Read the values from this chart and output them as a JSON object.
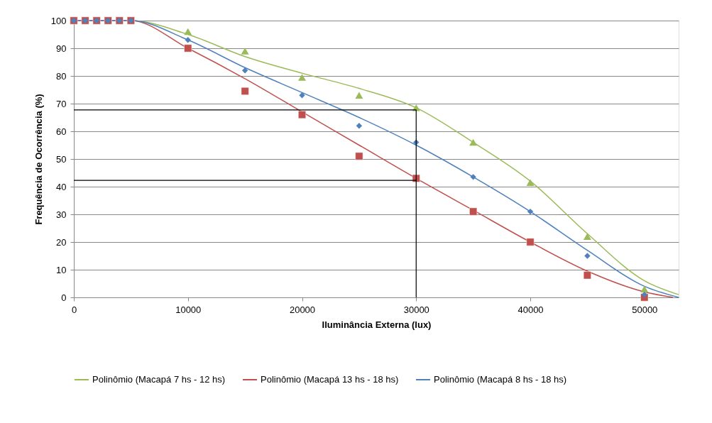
{
  "chart_data": {
    "type": "scatter",
    "xlabel": "Iluminância Externa (lux)",
    "ylabel": "Frequência de Ocorrência (%)",
    "xlim": [
      0,
      53000
    ],
    "xticks": [
      0,
      10000,
      20000,
      30000,
      40000,
      50000
    ],
    "ylim": [
      0,
      100
    ],
    "yticks": [
      0,
      10,
      20,
      30,
      40,
      50,
      60,
      70,
      80,
      90,
      100
    ],
    "grid": "y",
    "legend": "bottom",
    "series": [
      {
        "type": "line",
        "name": "Polinômio (Macapá 7 hs - 12 hs)",
        "color": "#9bbb59",
        "x": [
          0,
          5000,
          10000,
          15000,
          20000,
          25000,
          30000,
          35000,
          40000,
          45000,
          50000,
          53000
        ],
        "values": [
          100,
          100,
          95,
          87,
          81,
          75.5,
          68.5,
          56,
          42,
          23,
          6,
          1
        ]
      },
      {
        "type": "line",
        "name": "Polinômio (Macapá 13 hs - 18 hs)",
        "color": "#c0504d",
        "x": [
          0,
          5000,
          10000,
          15000,
          20000,
          25000,
          30000,
          35000,
          40000,
          45000,
          50000,
          52500
        ],
        "values": [
          100,
          100,
          90,
          79,
          67,
          55,
          43,
          31.5,
          20,
          9.5,
          2,
          0
        ]
      },
      {
        "type": "line",
        "name": "Polinômio (Macapá 8 hs - 18 hs)",
        "color": "#4f81bd",
        "x": [
          0,
          5000,
          10000,
          15000,
          20000,
          25000,
          30000,
          35000,
          40000,
          45000,
          50000,
          53000
        ],
        "values": [
          100,
          100,
          93,
          83,
          74,
          65,
          55,
          43.5,
          31,
          17,
          4,
          0
        ]
      },
      {
        "marker": "triangle",
        "color": "#9bbb59",
        "x": [
          10000,
          15000,
          20000,
          25000,
          30000,
          35000,
          40000,
          45000,
          50000
        ],
        "values": [
          96,
          89,
          79.5,
          73,
          68.5,
          56,
          41.5,
          22,
          3
        ]
      },
      {
        "marker": "square",
        "color": "#c0504d",
        "x": [
          0,
          1000,
          2000,
          3000,
          4000,
          5000,
          10000,
          15000,
          20000,
          25000,
          30000,
          35000,
          40000,
          45000,
          50000
        ],
        "values": [
          100,
          100,
          100,
          100,
          100,
          100,
          90,
          74.5,
          66,
          51,
          43,
          31,
          20,
          8,
          0
        ]
      },
      {
        "marker": "diamond",
        "color": "#4f81bd",
        "x": [
          0,
          1000,
          2000,
          3000,
          4000,
          5000,
          10000,
          15000,
          20000,
          25000,
          30000,
          35000,
          40000,
          45000,
          50000
        ],
        "values": [
          100,
          100,
          100,
          100,
          100,
          100,
          93,
          82,
          73,
          62,
          56,
          43.5,
          31,
          15,
          1
        ]
      },
      {
        "type": "line",
        "color": "#000000",
        "x": [
          0,
          30000,
          30000
        ],
        "values": [
          67.7,
          67.7,
          0
        ]
      },
      {
        "type": "line",
        "color": "#000000",
        "x": [
          0,
          30000
        ],
        "values": [
          42.3,
          42.3
        ]
      }
    ]
  }
}
